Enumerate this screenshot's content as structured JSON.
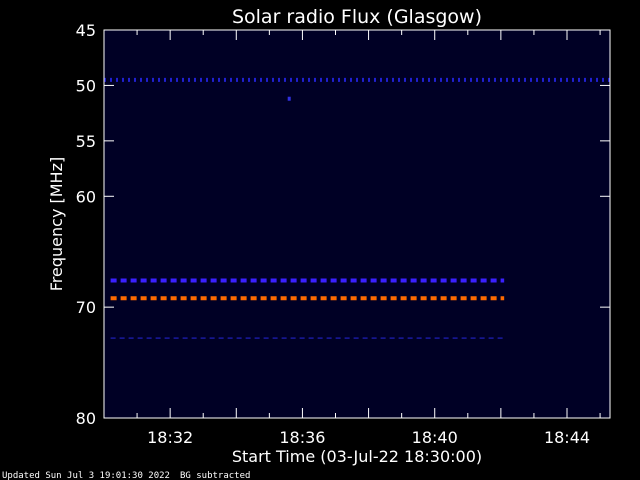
{
  "chart_data": {
    "type": "heatmap",
    "title": "Solar radio Flux (Glasgow)",
    "xlabel": "Start Time (03-Jul-22 18:30:00)",
    "ylabel": "Frequency [MHz]",
    "x_range_minutes": [
      0,
      15.3
    ],
    "x_ticks": [
      {
        "minute": 2,
        "label": "18:32"
      },
      {
        "minute": 6,
        "label": "18:36"
      },
      {
        "minute": 10,
        "label": "18:40"
      },
      {
        "minute": 14,
        "label": "18:44"
      }
    ],
    "y_range": [
      45,
      80
    ],
    "y_ticks": [
      {
        "value": 45,
        "label": "45"
      },
      {
        "value": 50,
        "label": "50"
      },
      {
        "value": 55,
        "label": "55"
      },
      {
        "value": 60,
        "label": "60"
      },
      {
        "value": 70,
        "label": "70"
      },
      {
        "value": 80,
        "label": "80"
      }
    ],
    "background_color": "#000025",
    "bands": [
      {
        "freq": 49.5,
        "start_min": 0,
        "end_min": 15.3,
        "style": "dotted",
        "color": "#2020d0"
      },
      {
        "freq": 67.6,
        "start_min": 0.2,
        "end_min": 12.1,
        "style": "dashed",
        "color": "#3a20ff"
      },
      {
        "freq": 69.2,
        "start_min": 0.2,
        "end_min": 12.1,
        "style": "dashed",
        "color": "#ff6a00"
      },
      {
        "freq": 72.8,
        "start_min": 0.2,
        "end_min": 12.1,
        "style": "dashed-thin",
        "color": "#1a1aa0"
      }
    ],
    "spots": [
      {
        "freq": 51.2,
        "minute": 5.6,
        "color": "#3030e0"
      }
    ]
  },
  "footer": {
    "updated": "Updated Sun Jul  3 19:01:30 2022",
    "note": "BG subtracted"
  }
}
